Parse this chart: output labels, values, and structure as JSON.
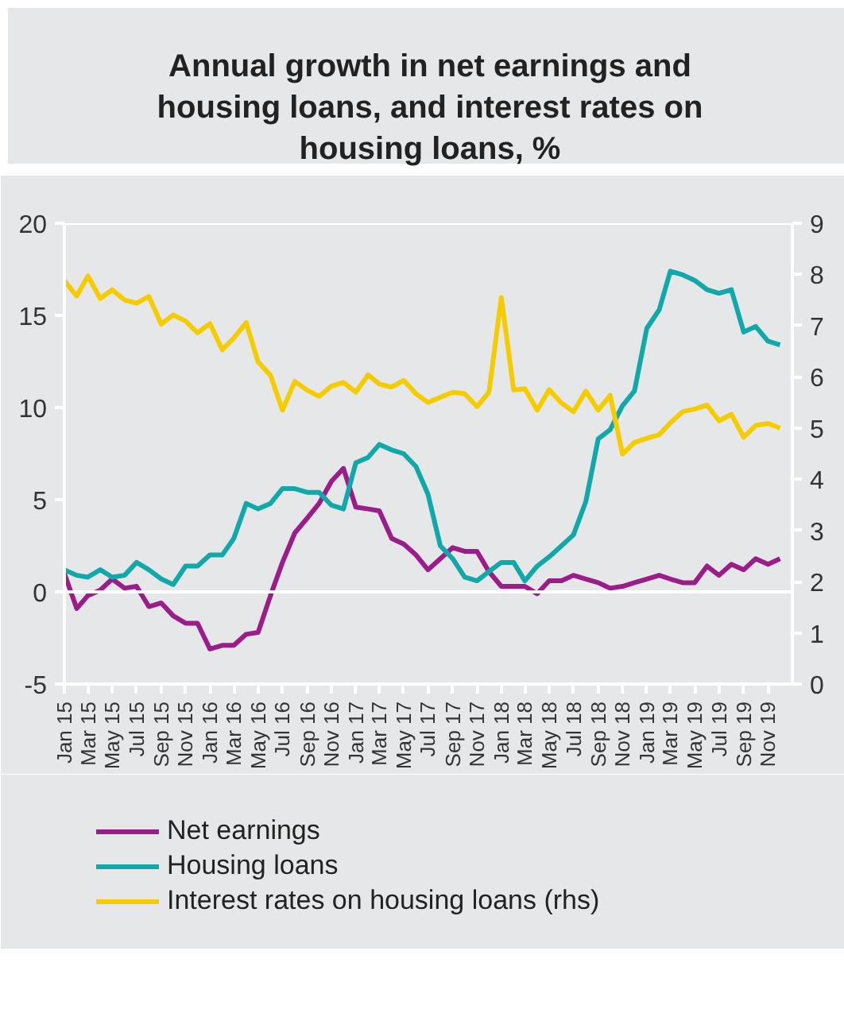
{
  "chart_data": {
    "type": "line",
    "title": "Annual growth in net earnings and housing loans, and interest rates on housing loans, %",
    "x": [
      "2015-01",
      "2015-02",
      "2015-03",
      "2015-04",
      "2015-05",
      "2015-06",
      "2015-07",
      "2015-08",
      "2015-09",
      "2015-10",
      "2015-11",
      "2015-12",
      "2016-01",
      "2016-02",
      "2016-03",
      "2016-04",
      "2016-05",
      "2016-06",
      "2016-07",
      "2016-08",
      "2016-09",
      "2016-10",
      "2016-11",
      "2016-12",
      "2017-01",
      "2017-02",
      "2017-03",
      "2017-04",
      "2017-05",
      "2017-06",
      "2017-07",
      "2017-08",
      "2017-09",
      "2017-10",
      "2017-11",
      "2017-12",
      "2018-01",
      "2018-02",
      "2018-03",
      "2018-04",
      "2018-05",
      "2018-06",
      "2018-07",
      "2018-08",
      "2018-09",
      "2018-10",
      "2018-11",
      "2018-12",
      "2019-01",
      "2019-02",
      "2019-03",
      "2019-04",
      "2019-05",
      "2019-06",
      "2019-07",
      "2019-08",
      "2019-09",
      "2019-10",
      "2019-11",
      "2019-12"
    ],
    "series": [
      {
        "name": "Net earnings",
        "color": "#9b1d8a",
        "values": [
          1.0,
          -0.9,
          -0.2,
          0.1,
          0.7,
          0.2,
          0.3,
          -0.8,
          -0.6,
          -1.3,
          -1.7,
          -1.7,
          -3.1,
          -2.9,
          -2.9,
          -2.3,
          -2.2,
          -0.2,
          1.6,
          3.2,
          4.0,
          4.8,
          6.0,
          6.7,
          4.6,
          4.5,
          4.4,
          2.9,
          2.6,
          2.0,
          1.2,
          1.8,
          2.4,
          2.2,
          2.2,
          1.1,
          0.3,
          0.3,
          0.3,
          -0.1,
          0.6,
          0.6,
          0.9,
          0.7,
          0.5,
          0.2,
          0.3,
          0.5,
          0.7,
          0.9,
          0.7,
          0.5,
          0.5,
          1.4,
          0.9,
          1.5,
          1.2,
          1.8,
          1.5,
          1.8
        ]
      },
      {
        "name": "Housing loans",
        "color": "#10a8a8",
        "values": [
          1.2,
          0.9,
          0.8,
          1.2,
          0.8,
          0.9,
          1.6,
          1.2,
          0.7,
          0.4,
          1.4,
          1.4,
          2.0,
          2.0,
          2.9,
          4.8,
          4.5,
          4.8,
          5.6,
          5.6,
          5.4,
          5.4,
          4.7,
          4.5,
          7.0,
          7.3,
          8.0,
          7.7,
          7.5,
          6.8,
          5.3,
          2.5,
          1.8,
          0.8,
          0.6,
          1.1,
          1.6,
          1.6,
          0.6,
          1.4,
          1.9,
          2.5,
          3.1,
          4.9,
          8.3,
          8.8,
          10.1,
          10.9,
          14.3,
          15.3,
          17.4,
          17.2,
          16.9,
          16.4,
          16.2,
          16.4,
          14.1,
          14.4,
          13.6,
          13.4
        ]
      },
      {
        "name": "Interest rates on housing loans (rhs)",
        "color": "#f5cc00",
        "axis": "y2",
        "values": [
          7.88,
          7.58,
          7.97,
          7.53,
          7.7,
          7.5,
          7.44,
          7.57,
          7.03,
          7.21,
          7.09,
          6.86,
          7.04,
          6.53,
          6.76,
          7.06,
          6.29,
          6.03,
          5.35,
          5.91,
          5.74,
          5.62,
          5.82,
          5.89,
          5.7,
          6.04,
          5.86,
          5.8,
          5.93,
          5.67,
          5.5,
          5.6,
          5.7,
          5.67,
          5.42,
          5.7,
          7.55,
          5.74,
          5.77,
          5.35,
          5.75,
          5.49,
          5.32,
          5.72,
          5.35,
          5.64,
          4.49,
          4.72,
          4.8,
          4.87,
          5.1,
          5.32,
          5.37,
          5.45,
          5.14,
          5.27,
          4.82,
          5.05,
          5.09,
          5.0
        ]
      }
    ],
    "xlim": [
      "2015-01",
      "2020-01"
    ],
    "xticks": [
      {
        "value": "2015-01",
        "label": "Jan 15"
      },
      {
        "value": "2015-03",
        "label": "Mar 15"
      },
      {
        "value": "2015-05",
        "label": "May 15"
      },
      {
        "value": "2015-07",
        "label": "Jul 15"
      },
      {
        "value": "2015-09",
        "label": "Sep 15"
      },
      {
        "value": "2015-11",
        "label": "Nov 15"
      },
      {
        "value": "2016-01",
        "label": "Jan 16"
      },
      {
        "value": "2016-03",
        "label": "Mar 16"
      },
      {
        "value": "2016-05",
        "label": "May 16"
      },
      {
        "value": "2016-07",
        "label": "Jul 16"
      },
      {
        "value": "2016-09",
        "label": "Sep 16"
      },
      {
        "value": "2016-11",
        "label": "Nov 16"
      },
      {
        "value": "2017-01",
        "label": "Jan 17"
      },
      {
        "value": "2017-03",
        "label": "Mar 17"
      },
      {
        "value": "2017-05",
        "label": "May 17"
      },
      {
        "value": "2017-07",
        "label": "Jul 17"
      },
      {
        "value": "2017-09",
        "label": "Sep 17"
      },
      {
        "value": "2017-11",
        "label": "Nov 17"
      },
      {
        "value": "2018-01",
        "label": "Jan 18"
      },
      {
        "value": "2018-03",
        "label": "Mar 18"
      },
      {
        "value": "2018-05",
        "label": "May 18"
      },
      {
        "value": "2018-07",
        "label": "Jul 18"
      },
      {
        "value": "2018-09",
        "label": "Sep 18"
      },
      {
        "value": "2018-11",
        "label": "Nov 18"
      },
      {
        "value": "2019-01",
        "label": "Jan 19"
      },
      {
        "value": "2019-03",
        "label": "Mar 19"
      },
      {
        "value": "2019-05",
        "label": "May 19"
      },
      {
        "value": "2019-07",
        "label": "Jul 19"
      },
      {
        "value": "2019-09",
        "label": "Sep 19"
      },
      {
        "value": "2019-11",
        "label": "Nov 19"
      }
    ],
    "ylim": [
      -5,
      20
    ],
    "yticks": [
      -5,
      0,
      5,
      10,
      15,
      20
    ],
    "y2lim": [
      0,
      9
    ],
    "y2ticks": [
      0,
      1,
      2,
      3,
      4,
      5,
      6,
      7,
      8,
      9
    ],
    "ref_lines": [
      {
        "axis": "y",
        "value": 0,
        "color": "#ffffff"
      }
    ],
    "grid": false,
    "legend": "bottom",
    "line_style": "solid",
    "marker": "none"
  }
}
